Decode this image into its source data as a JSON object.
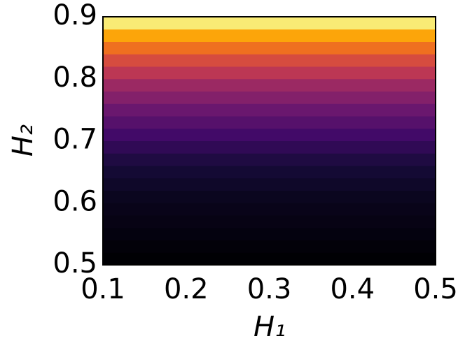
{
  "chart_data": {
    "type": "heatmap",
    "xlabel": "H₁",
    "ylabel": "H₂",
    "colormap": "inferno",
    "xbins": [
      0.1,
      0.5
    ],
    "ybins": [
      0.5,
      0.52,
      0.54,
      0.56,
      0.58,
      0.6,
      0.62,
      0.64,
      0.66,
      0.68,
      0.7,
      0.72,
      0.74,
      0.76,
      0.78,
      0.8,
      0.82,
      0.84,
      0.86,
      0.88,
      0.9
    ],
    "values": [
      [
        0.0
      ],
      [
        0.01
      ],
      [
        0.02
      ],
      [
        0.03
      ],
      [
        0.04
      ],
      [
        0.05
      ],
      [
        0.07
      ],
      [
        0.09
      ],
      [
        0.12
      ],
      [
        0.16
      ],
      [
        0.2
      ],
      [
        0.25
      ],
      [
        0.3
      ],
      [
        0.36
      ],
      [
        0.42
      ],
      [
        0.5
      ],
      [
        0.58
      ],
      [
        0.68
      ],
      [
        0.8
      ],
      [
        0.95
      ]
    ],
    "xlim": [
      0.1,
      0.5
    ],
    "ylim": [
      0.5,
      0.9
    ],
    "xticks": [
      0.1,
      0.2,
      0.3,
      0.4,
      0.5
    ],
    "yticks": [
      0.5,
      0.6,
      0.7,
      0.8,
      0.9
    ]
  }
}
